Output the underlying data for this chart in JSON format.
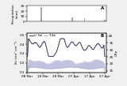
{
  "top_panel": {
    "title_label": "A",
    "ylabel": "Precipitation\n(mm)",
    "ylim": [
      0,
      32
    ],
    "yticks": [
      0,
      10,
      20,
      30
    ],
    "precip_days": [
      3,
      9,
      18,
      29,
      37,
      43,
      50
    ],
    "precip_vals": [
      1,
      28,
      1,
      8,
      7,
      1,
      3
    ]
  },
  "bottom_panel": {
    "title_label": "B",
    "ylabel_left": "θv (cm³ cm⁻³)",
    "ylabel_right": "CRn",
    "ylim_left": [
      0.1,
      0.52
    ],
    "ylim_right": [
      14,
      42
    ],
    "yticks_left": [
      0.1,
      0.2,
      0.3,
      0.4,
      0.5
    ],
    "yticks_right": [
      15,
      20,
      25,
      30,
      35,
      40
    ],
    "legend_li_sol": "Li Sol",
    "legend_trike": "Trike"
  },
  "xticklabels": [
    "08 Mar",
    "18 Mar",
    "28 Mar",
    "07 Apr",
    "17 Apr",
    "27 Apr"
  ],
  "colors": {
    "bar": "#aaaaaa",
    "li_sol_line": "#444466",
    "li_sol_fill": "#bbbbdd",
    "fill_edge": "#9999bb",
    "trike_line": "#7777aa",
    "background": "#f0f0f0",
    "panel_bg": "#ffffff"
  }
}
